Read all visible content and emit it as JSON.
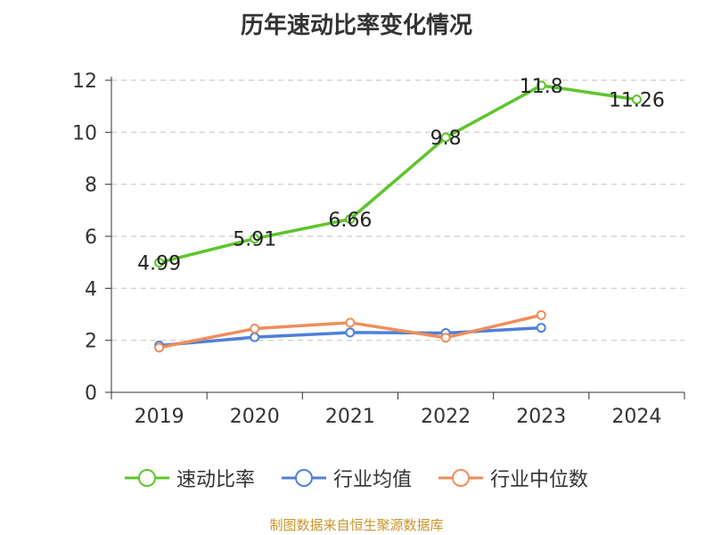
{
  "chart_data": {
    "type": "line",
    "title": "历年速动比率变化情况",
    "categories": [
      "2019",
      "2020",
      "2021",
      "2022",
      "2023",
      "2024"
    ],
    "ylim": [
      0,
      12
    ],
    "yticks": [
      0,
      2,
      4,
      6,
      8,
      10,
      12
    ],
    "grid": true,
    "legend_position": "bottom",
    "series": [
      {
        "name": "速动比率",
        "color": "#5ec52a",
        "values": [
          4.99,
          5.91,
          6.66,
          9.8,
          11.8,
          11.26
        ],
        "labels": [
          "4.99",
          "5.91",
          "6.66",
          "9.8",
          "11.8",
          "11.26"
        ]
      },
      {
        "name": "行业均值",
        "color": "#4f80d9",
        "values": [
          1.8,
          2.12,
          2.3,
          2.28,
          2.48,
          null
        ]
      },
      {
        "name": "行业中位数",
        "color": "#f08d5b",
        "values": [
          1.72,
          2.45,
          2.68,
          2.1,
          2.97,
          null
        ]
      }
    ]
  },
  "source": "制图数据来自恒生聚源数据库"
}
